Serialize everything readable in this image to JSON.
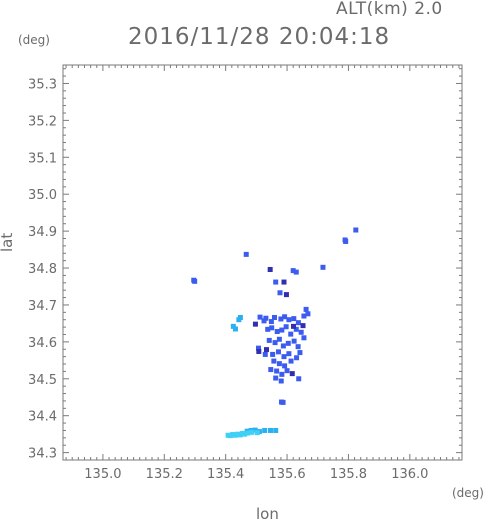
{
  "header": {
    "altitude_label": "ALT(km) 2.0",
    "timestamp": "2016/11/28 20:04:18"
  },
  "chart_data": {
    "type": "scatter",
    "title": "2016/11/28 20:04:18",
    "xlabel": "lon",
    "ylabel": "lat",
    "x_unit": "(deg)",
    "y_unit": "(deg)",
    "xlim": [
      134.87,
      136.17
    ],
    "ylim": [
      34.28,
      35.35
    ],
    "xticks": [
      "135.0",
      "135.2",
      "135.4",
      "135.6",
      "135.8",
      "136.0"
    ],
    "yticks": [
      "34.3",
      "34.4",
      "34.5",
      "34.6",
      "34.7",
      "34.8",
      "34.9",
      "35.0",
      "35.1",
      "35.2",
      "35.3"
    ],
    "grid": false,
    "colors": {
      "dark_blue": "#2f2fb0",
      "blue": "#3c5cf0",
      "light_blue": "#2ab0f0",
      "cyan": "#3fd0f5"
    },
    "series": [
      {
        "color": "#3c5cf0",
        "points": [
          [
            135.296,
            34.767
          ],
          [
            135.299,
            34.764
          ],
          [
            135.467,
            34.837
          ],
          [
            135.563,
            34.762
          ],
          [
            135.62,
            34.793
          ],
          [
            135.63,
            34.789
          ],
          [
            135.717,
            34.802
          ],
          [
            135.789,
            34.876
          ],
          [
            135.791,
            34.872
          ],
          [
            135.824,
            34.903
          ],
          [
            135.577,
            34.733
          ],
          [
            135.512,
            34.667
          ],
          [
            135.525,
            34.657
          ],
          [
            135.531,
            34.664
          ],
          [
            135.549,
            34.655
          ],
          [
            135.559,
            34.666
          ],
          [
            135.58,
            34.662
          ],
          [
            135.592,
            34.668
          ],
          [
            135.606,
            34.66
          ],
          [
            135.622,
            34.663
          ],
          [
            135.637,
            34.652
          ],
          [
            135.655,
            34.67
          ],
          [
            135.662,
            34.688
          ],
          [
            135.668,
            34.676
          ],
          [
            135.537,
            34.634
          ],
          [
            135.55,
            34.638
          ],
          [
            135.568,
            34.628
          ],
          [
            135.583,
            34.632
          ],
          [
            135.597,
            34.641
          ],
          [
            135.612,
            34.621
          ],
          [
            135.63,
            34.634
          ],
          [
            135.646,
            34.626
          ],
          [
            135.655,
            34.611
          ],
          [
            135.542,
            34.604
          ],
          [
            135.561,
            34.598
          ],
          [
            135.575,
            34.607
          ],
          [
            135.588,
            34.589
          ],
          [
            135.604,
            34.596
          ],
          [
            135.623,
            34.602
          ],
          [
            135.636,
            34.587
          ],
          [
            135.507,
            34.583
          ],
          [
            135.529,
            34.566
          ],
          [
            135.553,
            34.566
          ],
          [
            135.572,
            34.573
          ],
          [
            135.59,
            34.56
          ],
          [
            135.606,
            34.568
          ],
          [
            135.642,
            34.571
          ],
          [
            135.557,
            34.548
          ],
          [
            135.575,
            34.541
          ],
          [
            135.592,
            34.535
          ],
          [
            135.613,
            34.548
          ],
          [
            135.631,
            34.557
          ],
          [
            135.547,
            34.525
          ],
          [
            135.566,
            34.521
          ],
          [
            135.583,
            34.512
          ],
          [
            135.6,
            34.522
          ],
          [
            135.563,
            34.502
          ],
          [
            135.581,
            34.494
          ],
          [
            135.638,
            34.5
          ],
          [
            135.582,
            34.437
          ],
          [
            135.587,
            34.436
          ]
        ]
      },
      {
        "color": "#2f2fb0",
        "points": [
          [
            135.545,
            34.796
          ],
          [
            135.59,
            34.762
          ],
          [
            135.598,
            34.728
          ],
          [
            135.497,
            34.648
          ],
          [
            135.652,
            34.644
          ],
          [
            135.508,
            34.574
          ],
          [
            135.533,
            34.579
          ],
          [
            135.617,
            34.514
          ],
          [
            135.621,
            34.642
          ]
        ]
      },
      {
        "color": "#2ab0f0",
        "points": [
          [
            135.425,
            34.642
          ],
          [
            135.432,
            34.635
          ],
          [
            135.443,
            34.66
          ],
          [
            135.448,
            34.666
          ],
          [
            135.47,
            34.358
          ],
          [
            135.483,
            34.36
          ],
          [
            135.496,
            34.361
          ],
          [
            135.51,
            34.357
          ],
          [
            135.527,
            34.36
          ],
          [
            135.546,
            34.36
          ],
          [
            135.563,
            34.36
          ]
        ]
      },
      {
        "color": "#3fd0f5",
        "points": [
          [
            135.408,
            34.347
          ],
          [
            135.415,
            34.346
          ],
          [
            135.423,
            34.349
          ],
          [
            135.431,
            34.347
          ],
          [
            135.439,
            34.35
          ],
          [
            135.447,
            34.348
          ],
          [
            135.455,
            34.352
          ],
          [
            135.462,
            34.35
          ],
          [
            135.472,
            34.353
          ],
          [
            135.485,
            34.355
          ],
          [
            135.503,
            34.354
          ]
        ]
      }
    ]
  }
}
